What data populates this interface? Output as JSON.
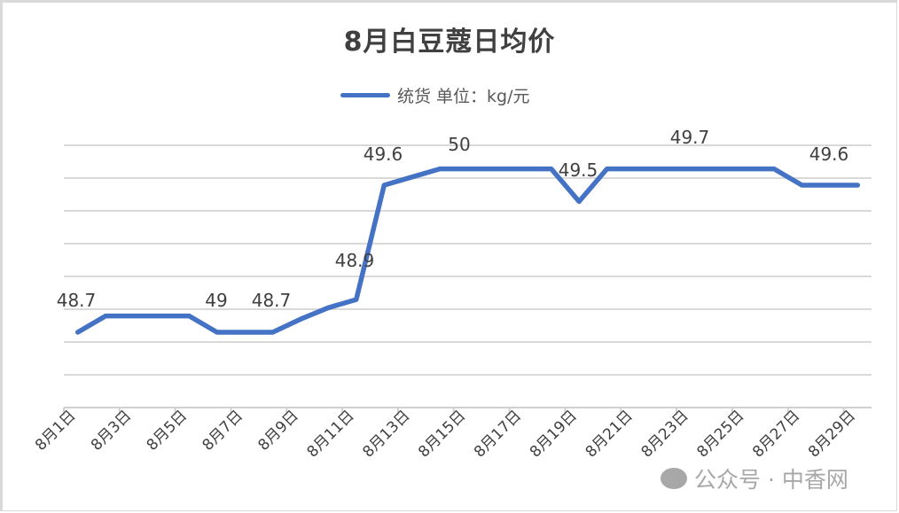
{
  "title": "8月白豆蔻日均价",
  "legend": {
    "label": "统货 单位：kg/元",
    "color": "#4472c4"
  },
  "watermark": {
    "icon": "wechat-icon",
    "text": "公众号 · 中香网"
  },
  "chart_data": {
    "type": "line",
    "title": "8月白豆蔻日均价",
    "xlabel": "",
    "ylabel": "",
    "grid": true,
    "legend_position": "top",
    "ylim": [
      48.2,
      50.0
    ],
    "x": [
      "8月1日",
      "8月2日",
      "8月3日",
      "8月4日",
      "8月5日",
      "8月6日",
      "8月7日",
      "8月8日",
      "8月9日",
      "8月10日",
      "8月11日",
      "8月12日",
      "8月13日",
      "8月14日",
      "8月15日",
      "8月16日",
      "8月17日",
      "8月18日",
      "8月19日",
      "8月20日",
      "8月21日",
      "8月22日",
      "8月23日",
      "8月24日",
      "8月25日",
      "8月26日",
      "8月27日",
      "8月28日",
      "8月29日"
    ],
    "tick_labels": [
      "8月1日",
      "8月3日",
      "8月5日",
      "8月7日",
      "8月9日",
      "8月11日",
      "8月13日",
      "8月15日",
      "8月17日",
      "8月19日",
      "8月21日",
      "8月23日",
      "8月25日",
      "8月27日",
      "8月29日"
    ],
    "series": [
      {
        "name": "统货 单位：kg/元",
        "values": [
          48.7,
          48.8,
          48.8,
          48.8,
          48.8,
          48.7,
          48.7,
          48.7,
          48.78,
          48.85,
          48.9,
          49.6,
          49.65,
          49.7,
          49.7,
          49.7,
          49.7,
          49.7,
          49.5,
          49.7,
          49.7,
          49.7,
          49.7,
          49.7,
          49.7,
          49.7,
          49.6,
          49.6,
          49.6
        ]
      }
    ],
    "annotations": [
      {
        "text": "48.7",
        "x": "8月1日"
      },
      {
        "text": "49",
        "x": "8月6日"
      },
      {
        "text": "48.7",
        "x": "8月8日"
      },
      {
        "text": "48.9",
        "x": "8月11日"
      },
      {
        "text": "49.6",
        "x": "8月12日"
      },
      {
        "text": "50",
        "x": "8月14日"
      },
      {
        "text": "49.5",
        "x": "8月19日"
      },
      {
        "text": "49.7",
        "x": "8月23日"
      },
      {
        "text": "49.6",
        "x": "8月27日"
      }
    ]
  }
}
